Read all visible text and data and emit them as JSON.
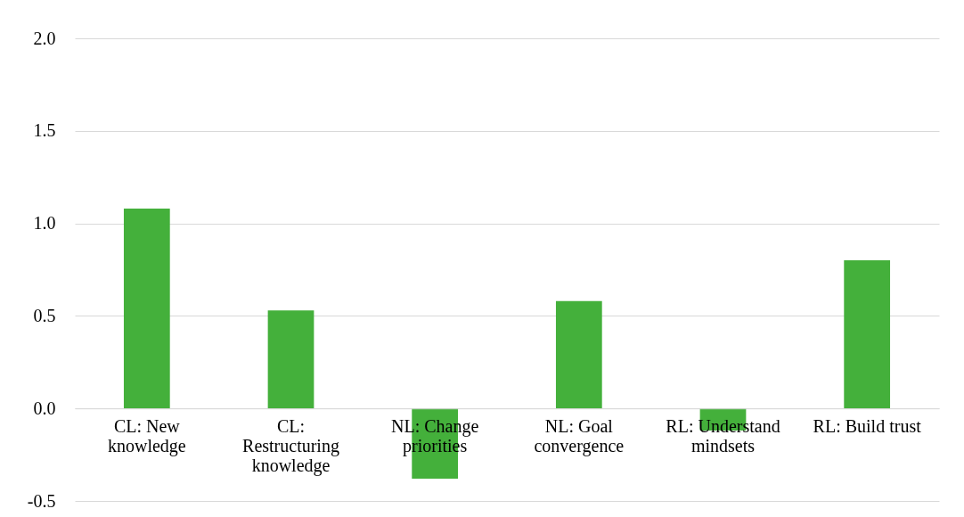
{
  "chart_data": {
    "type": "bar",
    "categories": [
      "CL: New knowledge",
      "CL: Restructuring knowledge",
      "NL: Change priorities",
      "NL: Goal convergence",
      "RL: Understand mindsets",
      "RL: Build trust"
    ],
    "values": [
      1.08,
      0.53,
      -0.38,
      0.58,
      -0.12,
      0.8
    ],
    "color": "#44b03b",
    "ylim": [
      -0.5,
      2.0
    ],
    "yticks": [
      {
        "value": -0.5,
        "label": "-0.5"
      },
      {
        "value": 0,
        "label": "0.0"
      },
      {
        "value": 0.5,
        "label": "0.5"
      },
      {
        "value": 1,
        "label": "1.0"
      },
      {
        "value": 1.5,
        "label": "1.5"
      },
      {
        "value": 2,
        "label": "2.0"
      }
    ],
    "grid": "y"
  }
}
